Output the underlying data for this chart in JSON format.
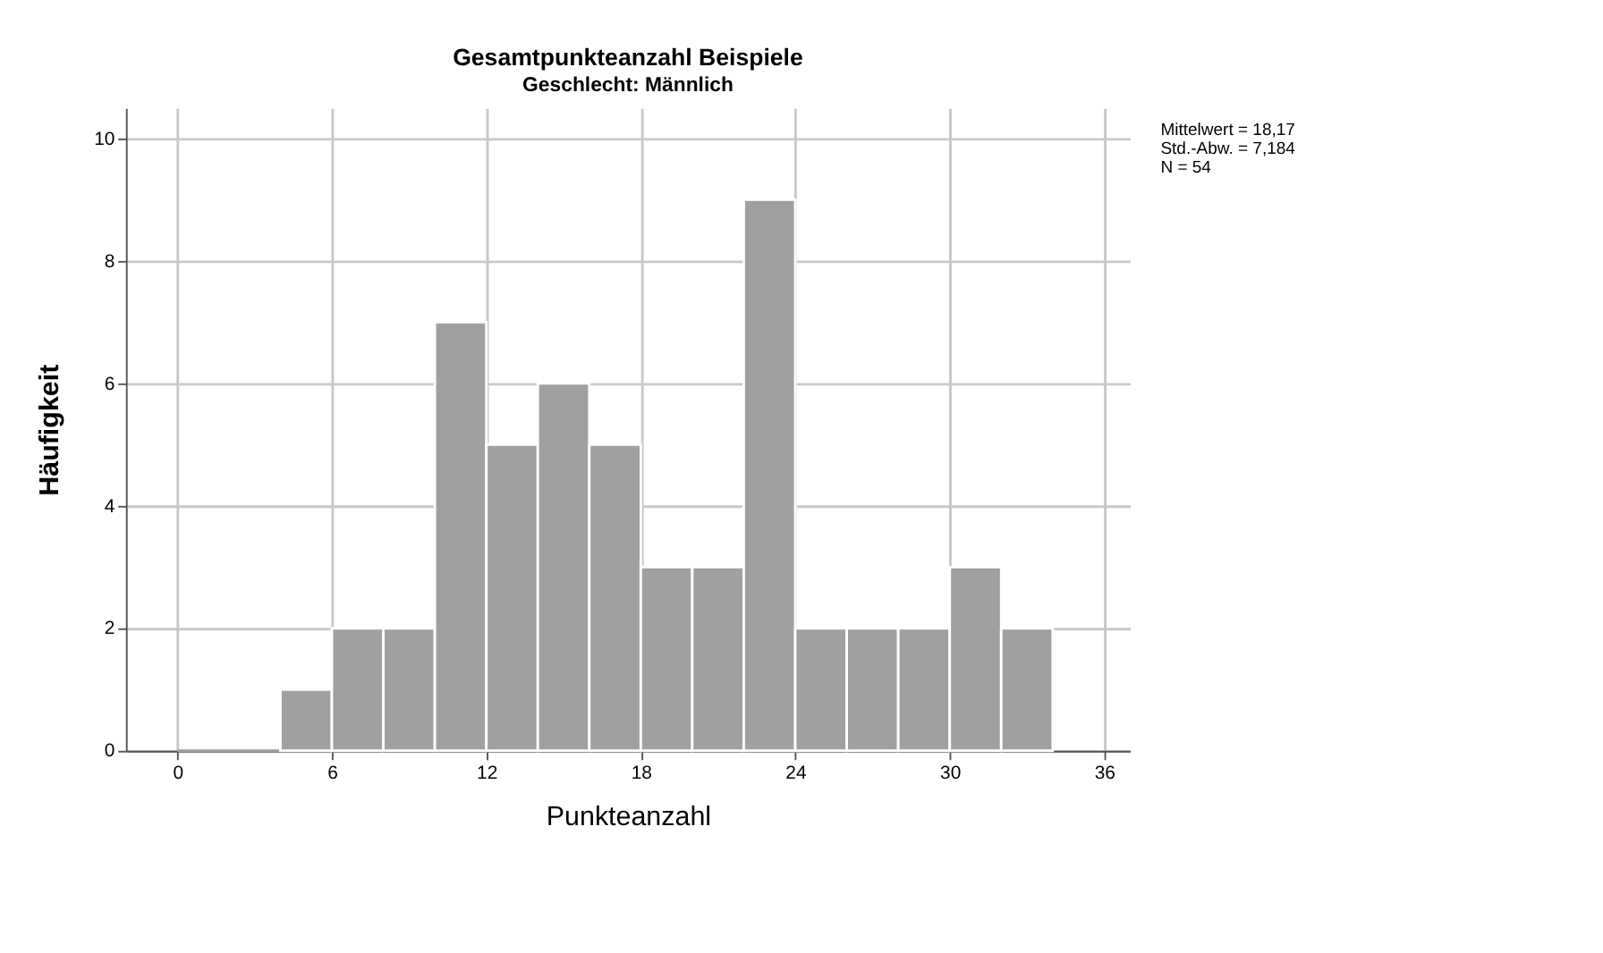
{
  "chart_data": {
    "type": "histogram",
    "title": "Gesamtpunkteanzahl Beispiele",
    "subtitle": "Geschlecht: Männlich",
    "xlabel": "Punkteanzahl",
    "ylabel": "Häufigkeit",
    "bins": [
      0,
      2,
      4,
      6,
      8,
      10,
      12,
      14,
      16,
      18,
      20,
      22,
      24,
      26,
      28,
      30,
      32,
      34
    ],
    "values": [
      0,
      0,
      1,
      2,
      2,
      7,
      5,
      6,
      5,
      3,
      3,
      9,
      2,
      2,
      2,
      3,
      2
    ],
    "color": "#a0a0a0",
    "xlim": [
      -2,
      37
    ],
    "xticks": [
      0,
      6,
      12,
      18,
      24,
      30,
      36
    ],
    "ylim": [
      0,
      10.5
    ],
    "yticks": [
      0,
      2,
      4,
      6,
      8,
      10
    ],
    "grid": true,
    "annotations": [
      "Mittelwert = 18,17",
      "Std.-Abw. = 7,184",
      "N = 54"
    ]
  }
}
